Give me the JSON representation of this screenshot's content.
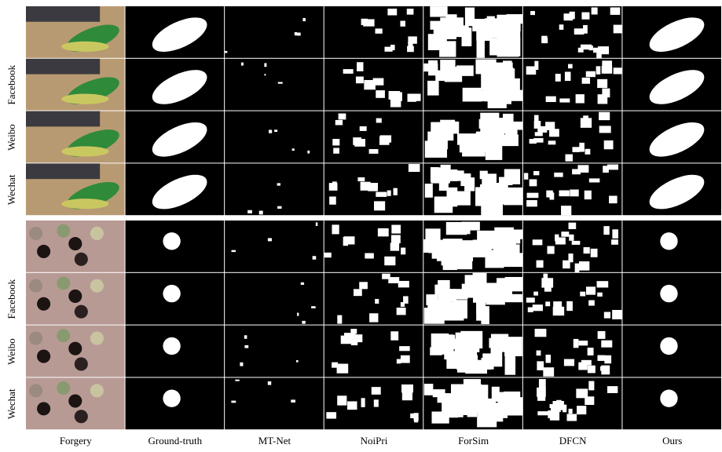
{
  "columns": [
    "Forgery",
    "Ground-truth",
    "MT-Net",
    "NoiPri",
    "ForSim",
    "DFCN",
    "Ours"
  ],
  "groups": [
    {
      "row_labels": [
        "Facebook",
        "Weibo",
        "Wechat"
      ]
    },
    {
      "row_labels": [
        "Facebook",
        "Weibo",
        "Wechat"
      ]
    }
  ]
}
